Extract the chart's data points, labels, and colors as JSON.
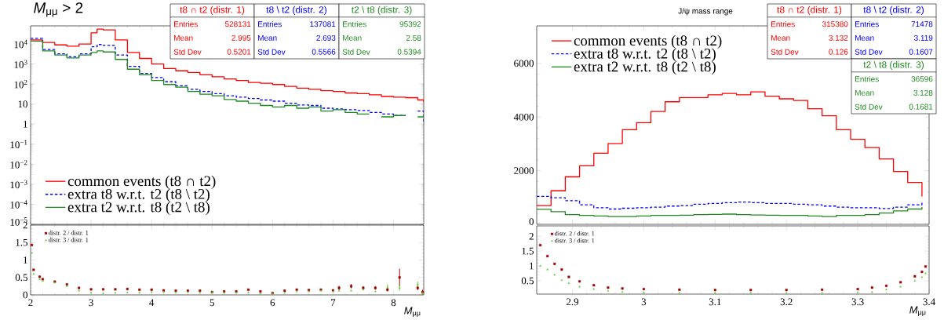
{
  "chart_data": [
    {
      "type": "step",
      "title": "*M*$_{μμ}$ > 2",
      "log": "y",
      "xlim": [
        2,
        8.5
      ],
      "ylim": [
        1e-05,
        80000
      ],
      "xticks": [
        2,
        3,
        4,
        5,
        6,
        7,
        8
      ],
      "tick_labels": "y",
      "legend": "bottom left",
      "yticks": [
        {
          "value": 1e-05,
          "label": "10$^{−5}$"
        },
        {
          "value": 0.0001,
          "label": "10$^{−4}$"
        },
        {
          "value": 0.001,
          "label": "10$^{−3}$"
        },
        {
          "value": 0.01,
          "label": "10$^{−2}$"
        },
        {
          "value": 0.1,
          "label": "10$^{−1}$"
        },
        1,
        10,
        {
          "value": 100,
          "label": "10$^{2}$"
        },
        {
          "value": 1000,
          "label": "10$^{3}$"
        },
        {
          "value": 10000,
          "label": "10$^{4}$"
        }
      ],
      "x": [
        2,
        2.2,
        2.4,
        2.6,
        2.8,
        3,
        3.1,
        3.2,
        3.4,
        3.6,
        3.8,
        4,
        4.2,
        4.4,
        4.6,
        4.8,
        5,
        5.2,
        5.4,
        5.6,
        5.8,
        6,
        6.2,
        6.4,
        6.6,
        6.8,
        7,
        7.2,
        7.4,
        7.6,
        7.8,
        8,
        8.2,
        8.4,
        8.5
      ],
      "series": [
        {
          "name": "common events (t8 ∩ t2)",
          "color": "#ff0000",
          "line_style": "solid",
          "values": [
            16000,
            12000,
            9000,
            7700,
            10000,
            36000,
            55000,
            50000,
            16000,
            3800,
            1900,
            1000,
            590,
            460,
            380,
            290,
            230,
            180,
            150,
            120,
            110,
            95,
            76,
            63,
            55,
            47,
            43,
            36,
            33,
            29,
            24,
            22,
            21,
            16,
            12
          ]
        },
        {
          "name": "extra t8 w.r.t. t2 (t8 \\  t2)",
          "color": "#0000ff",
          "line_style": "dashed",
          "values": [
            19000,
            5300,
            3200,
            2300,
            3200,
            7300,
            9400,
            8500,
            2800,
            760,
            340,
            210,
            130,
            82,
            55,
            43,
            33,
            26,
            22,
            19,
            16,
            14,
            11,
            9,
            8.5,
            6.2,
            5.7,
            5.2,
            4.8,
            3.8,
            3.2,
            2.7,
            null,
            4.5,
            1.3
          ]
        },
        {
          "name": "extra t2 w.r.t. t8 (t2 \\  t8)",
          "color": "#1f8a1f",
          "line_style": "solid",
          "values": [
            14000,
            4500,
            2800,
            2000,
            2800,
            3800,
            4500,
            4000,
            1700,
            550,
            290,
            150,
            95,
            70,
            43,
            31,
            26,
            17,
            14,
            11,
            8.5,
            7.2,
            8.5,
            6.2,
            7.2,
            4.5,
            5.2,
            3.8,
            3.2,
            null,
            2.3,
            2.7,
            null,
            2.3,
            3
          ]
        }
      ],
      "annotations": [
        "t8 ∩ t2 (distr. 1)",
        "Entries",
        "528131",
        "Mean",
        "2.995",
        "Std Dev",
        "0.5201",
        "t8 \\  t2 (distr. 2)",
        "Entries",
        "137081",
        "Mean",
        "2.693",
        "Std Dev",
        "0.5566",
        "t2 \\  t8 (distr. 3)",
        "Entries",
        "95392",
        "Mean",
        "2.58",
        "Std Dev",
        "0.5394"
      ]
    },
    {
      "type": "scatter",
      "xlabel": "*M*$_{μμ}$",
      "xlim": [
        2,
        8.5
      ],
      "ylim": [
        0,
        2
      ],
      "xticks": [
        2,
        3,
        4,
        5,
        6,
        7,
        8
      ],
      "yticks": [
        0,
        0.5,
        1,
        1.5,
        2
      ],
      "legend": "top left",
      "x": [
        2.02,
        2.05,
        2.15,
        2.2,
        2.4,
        2.6,
        2.8,
        3,
        3.2,
        3.4,
        3.6,
        3.8,
        4,
        4.2,
        4.4,
        4.6,
        4.8,
        5,
        5.2,
        5.4,
        5.6,
        5.8,
        6,
        6.2,
        6.4,
        6.6,
        6.8,
        7,
        7.1,
        7.3,
        7.5,
        7.7,
        7.9,
        8.1,
        8.4,
        8.48
      ],
      "series": [
        {
          "name": "distr. 2 / distr. 1",
          "color": "#990000",
          "marker": "square",
          "values": [
            1.43,
            0.72,
            0.52,
            0.45,
            0.38,
            0.3,
            0.2,
            0.16,
            0.16,
            0.16,
            0.17,
            0.15,
            0.15,
            0.13,
            0.12,
            0.12,
            0.12,
            0.08,
            0.1,
            0.1,
            0.15,
            0.1,
            0.05,
            0.12,
            0.15,
            0.14,
            0.15,
            0.13,
            0.2,
            0.25,
            0.2,
            0.2,
            0.15,
            0.5,
            0.2,
            0.08
          ],
          "errors": [
            null,
            null,
            null,
            null,
            null,
            null,
            null,
            null,
            null,
            null,
            null,
            null,
            null,
            null,
            null,
            null,
            null,
            null,
            null,
            null,
            null,
            null,
            null,
            null,
            null,
            null,
            null,
            null,
            0.06,
            0.06,
            0.05,
            0.05,
            0.05,
            0.25,
            0.06,
            0.07
          ]
        },
        {
          "name": "distr. 3 / distr. 1",
          "color": "#66cc33",
          "marker": "triangle",
          "values": [
            1.2,
            0.6,
            0.45,
            0.4,
            0.35,
            0.25,
            0.12,
            0.06,
            0.05,
            0.06,
            0.07,
            0.07,
            0.08,
            0.08,
            0.07,
            0.08,
            0.07,
            0.07,
            0.06,
            0.06,
            0.07,
            0.04,
            0.03,
            0.06,
            0.1,
            0.1,
            0.12,
            0.1,
            0.12,
            0.12,
            0.15,
            0.1,
            0.22,
            0.2,
            0.3,
            0.05
          ],
          "errors": [
            null,
            null,
            null,
            null,
            null,
            null,
            null,
            null,
            null,
            null,
            null,
            null,
            null,
            null,
            null,
            null,
            null,
            null,
            null,
            null,
            null,
            null,
            null,
            null,
            null,
            null,
            null,
            null,
            null,
            null,
            null,
            null,
            0.08,
            0.08,
            0.08,
            0.04
          ]
        }
      ]
    },
    {
      "type": "step",
      "title": "J/ψ mass range",
      "xlim": [
        2.85,
        3.4
      ],
      "ylim": [
        0,
        7400
      ],
      "xticks": [
        2.9,
        3,
        3.1,
        3.2,
        3.3,
        3.4
      ],
      "yticks": [
        0,
        2000,
        4000,
        6000
      ],
      "tick_labels": "y",
      "legend": "top left",
      "x": [
        2.85,
        2.87,
        2.89,
        2.91,
        2.93,
        2.95,
        2.97,
        2.99,
        3.01,
        3.03,
        3.05,
        3.07,
        3.09,
        3.11,
        3.13,
        3.15,
        3.17,
        3.19,
        3.21,
        3.23,
        3.25,
        3.27,
        3.29,
        3.31,
        3.33,
        3.35,
        3.37,
        3.39
      ],
      "series": [
        {
          "name": "common events (t8 ∩ t2)",
          "color": "#ff0000",
          "line_style": "solid",
          "values": [
            700,
            1250,
            1770,
            2180,
            2650,
            3010,
            3530,
            3790,
            4210,
            4570,
            4730,
            4730,
            4830,
            4880,
            4830,
            4940,
            4780,
            4680,
            4620,
            4310,
            4050,
            3530,
            3170,
            2860,
            2440,
            1970,
            1560,
            1040
          ]
        },
        {
          "name": "extra t8 w.r.t. t2 (t8 \\  t2)",
          "color": "#0000ff",
          "line_style": "dashed",
          "values": [
            1040,
            990,
            880,
            730,
            620,
            570,
            600,
            620,
            640,
            680,
            700,
            750,
            780,
            810,
            830,
            810,
            780,
            780,
            750,
            730,
            680,
            640,
            620,
            620,
            590,
            640,
            730,
            850
          ]
        },
        {
          "name": "extra t2 w.r.t. t8 (t2 \\  t8)",
          "color": "#1f8a1f",
          "line_style": "solid",
          "values": [
            560,
            470,
            360,
            330,
            310,
            290,
            290,
            310,
            330,
            330,
            340,
            360,
            370,
            380,
            360,
            350,
            340,
            330,
            330,
            310,
            290,
            330,
            330,
            360,
            420,
            500,
            570,
            640
          ]
        }
      ],
      "annotations": [
        "t8 ∩ t2 (distr. 1)",
        "Entries",
        "315380",
        "Mean",
        "3.132",
        "Std Dev",
        "0.126",
        "t8 \\  t2 (distr. 2)",
        "Entries",
        "71478",
        "Mean",
        "3.119",
        "Std Dev",
        "0.1607",
        "t2 \\  t8 (distr. 3)",
        "Entries",
        "36596",
        "Mean",
        "3.128",
        "Std Dev",
        "0.1681"
      ]
    },
    {
      "type": "scatter",
      "xlabel": "*M*$_{μμ}$",
      "xlim": [
        2.85,
        3.4
      ],
      "ylim": [
        0.05,
        2.35
      ],
      "xticks": [
        2.9,
        3,
        3.1,
        3.2,
        3.3,
        3.4
      ],
      "yticks": [
        0.5,
        1,
        1.5,
        2
      ],
      "legend": "top left",
      "x": [
        2.855,
        2.865,
        2.875,
        2.885,
        2.895,
        2.91,
        2.93,
        2.95,
        2.97,
        3.0,
        3.05,
        3.1,
        3.15,
        3.2,
        3.25,
        3.3,
        3.32,
        3.34,
        3.36,
        3.38,
        3.39,
        3.395
      ],
      "series": [
        {
          "name": "distr. 2 / distr. 1",
          "color": "#990000",
          "marker": "square",
          "values": [
            1.7,
            1.33,
            1.07,
            0.88,
            0.63,
            0.48,
            0.35,
            0.27,
            0.24,
            0.22,
            0.2,
            0.19,
            0.19,
            0.19,
            0.2,
            0.22,
            0.27,
            0.33,
            0.45,
            0.65,
            0.8,
            0.98
          ]
        },
        {
          "name": "distr. 3 / distr. 1",
          "color": "#66cc33",
          "marker": "triangle",
          "values": [
            1.0,
            0.88,
            0.7,
            0.52,
            0.42,
            0.3,
            0.22,
            0.16,
            0.12,
            0.1,
            0.09,
            0.09,
            0.09,
            0.09,
            0.09,
            0.1,
            0.12,
            0.2,
            0.3,
            0.5,
            0.62,
            0.75
          ]
        }
      ]
    }
  ]
}
